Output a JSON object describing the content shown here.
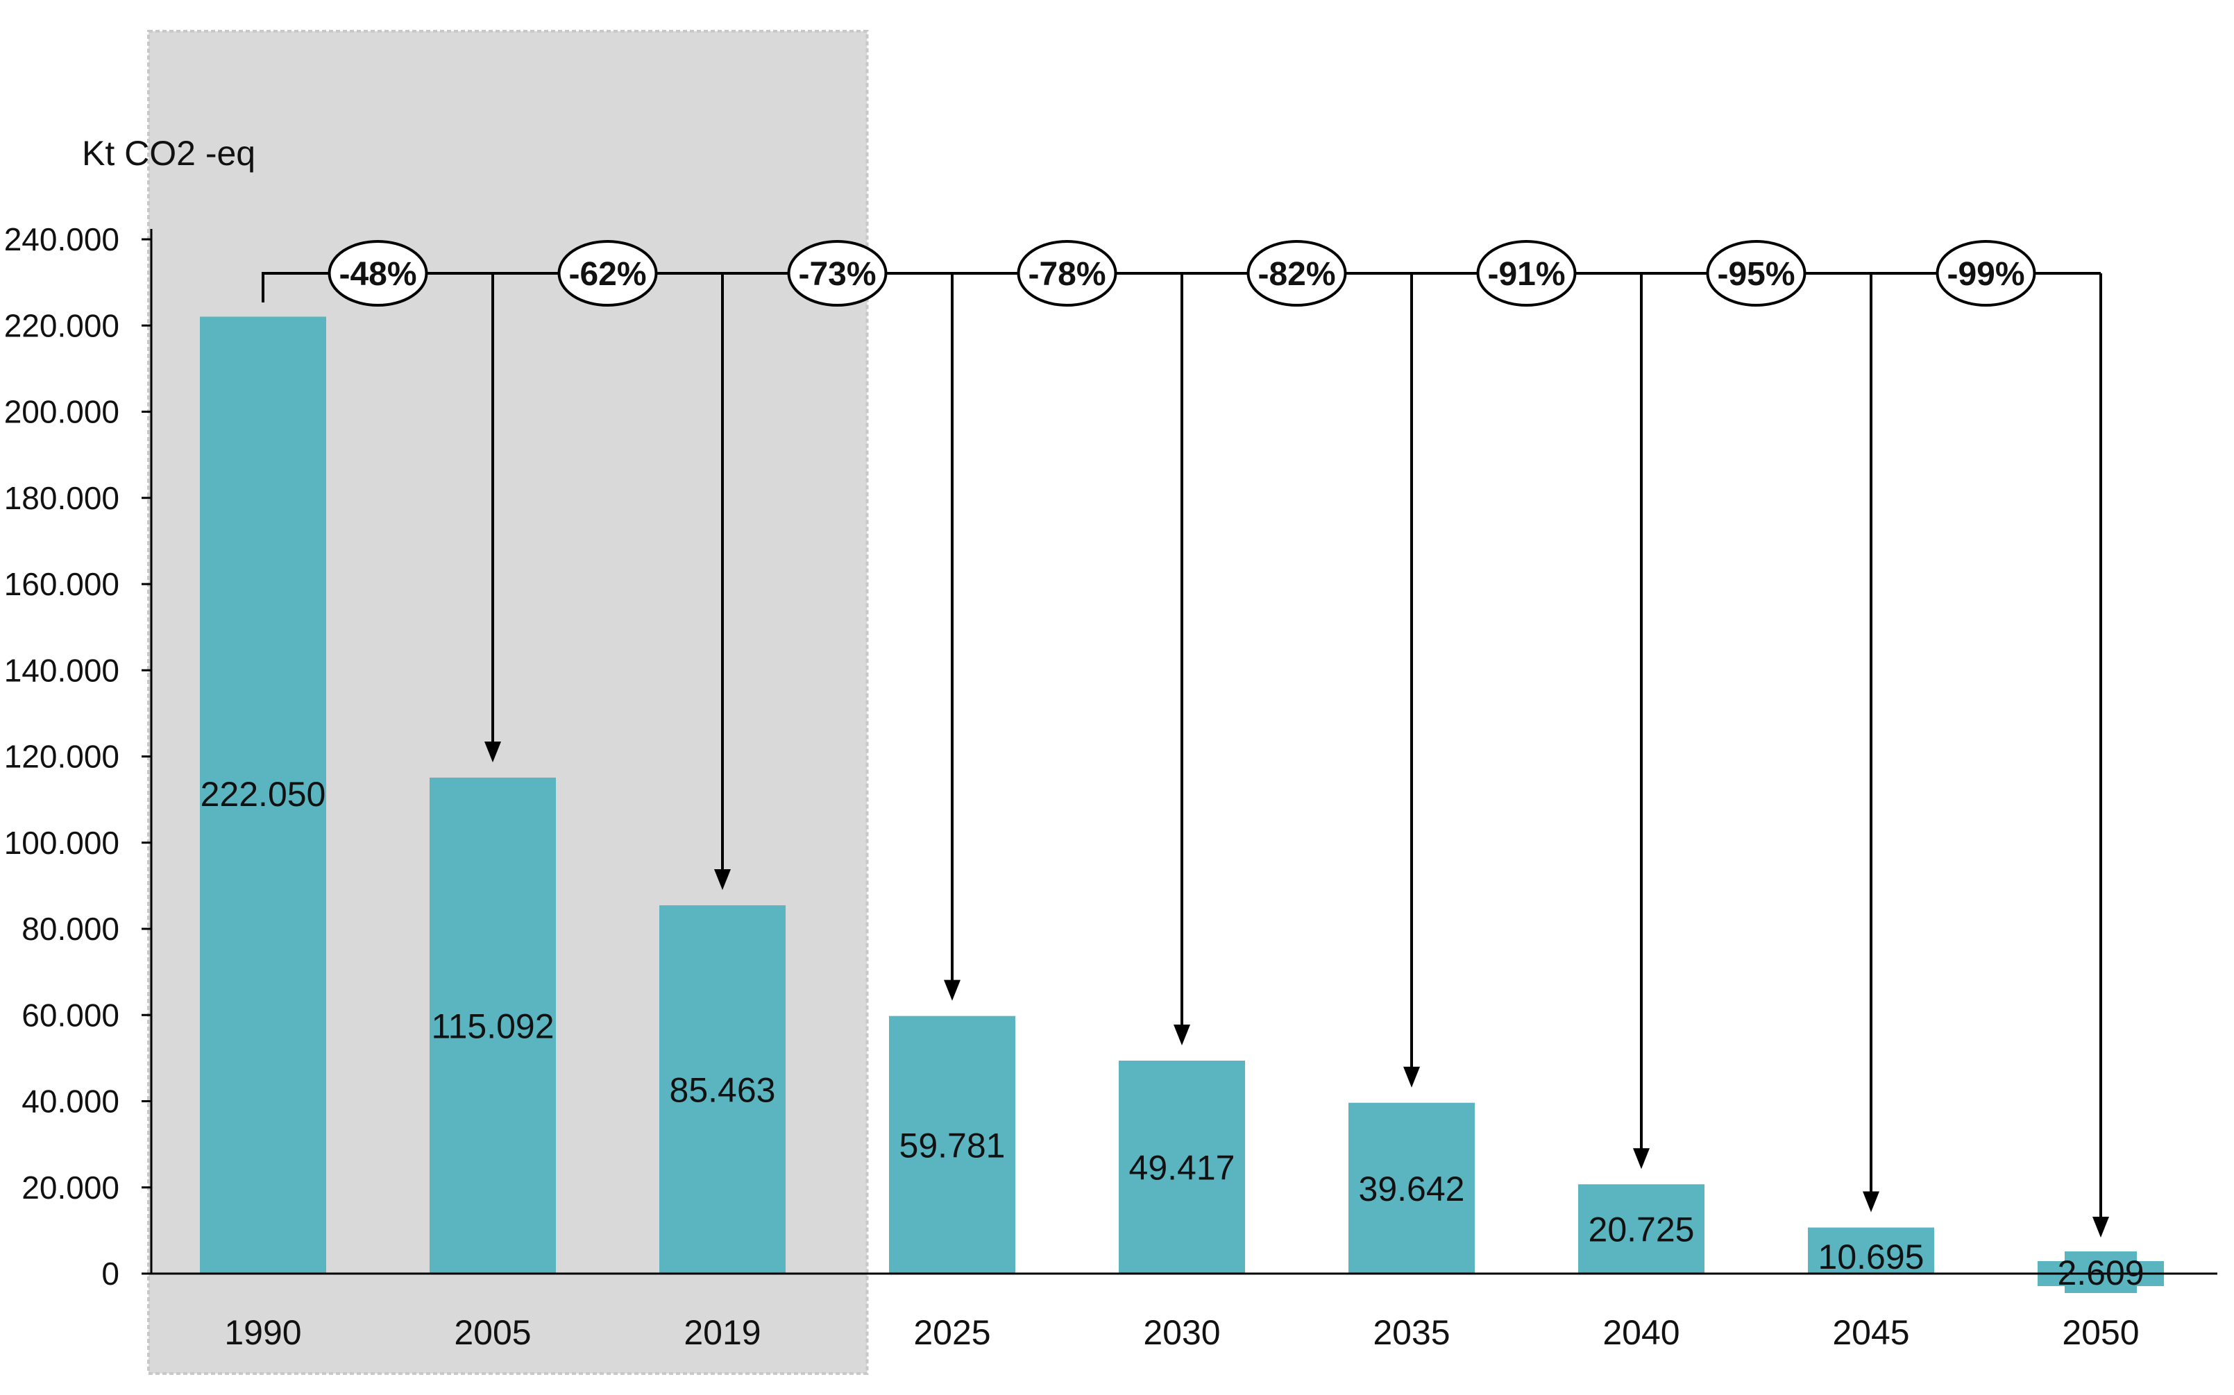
{
  "chart_data": {
    "type": "bar",
    "unit_label": "Kt CO2 -eq",
    "categories": [
      "1990",
      "2005",
      "2019",
      "2025",
      "2030",
      "2035",
      "2040",
      "2045",
      "2050"
    ],
    "values": [
      222050,
      115092,
      85463,
      59781,
      49417,
      39642,
      20725,
      10695,
      2609
    ],
    "value_labels": [
      "222.050",
      "115.092",
      "85.463",
      "59.781",
      "49.417",
      "39.642",
      "20.725",
      "10.695",
      "2.609"
    ],
    "reduction_labels": [
      "-48%",
      "-62%",
      "-73%",
      "-78%",
      "-82%",
      "-91%",
      "-95%",
      "-99%"
    ],
    "ylim": [
      0,
      240000
    ],
    "y_ticks": [
      0,
      20000,
      40000,
      60000,
      80000,
      100000,
      120000,
      140000,
      160000,
      180000,
      200000,
      220000,
      240000
    ],
    "y_tick_labels": [
      "0",
      "20.000",
      "40.000",
      "60.000",
      "80.000",
      "100.000",
      "120.000",
      "140.000",
      "160.000",
      "180.000",
      "200.000",
      "220.000",
      "240.000"
    ],
    "historical_shaded_categories": [
      "1990",
      "2005",
      "2019"
    ],
    "grid": false,
    "legend": "none",
    "colors": {
      "bar": "#5ab5c0",
      "shade": "#d9d9d9",
      "axis": "#000000",
      "text": "#111111"
    }
  }
}
